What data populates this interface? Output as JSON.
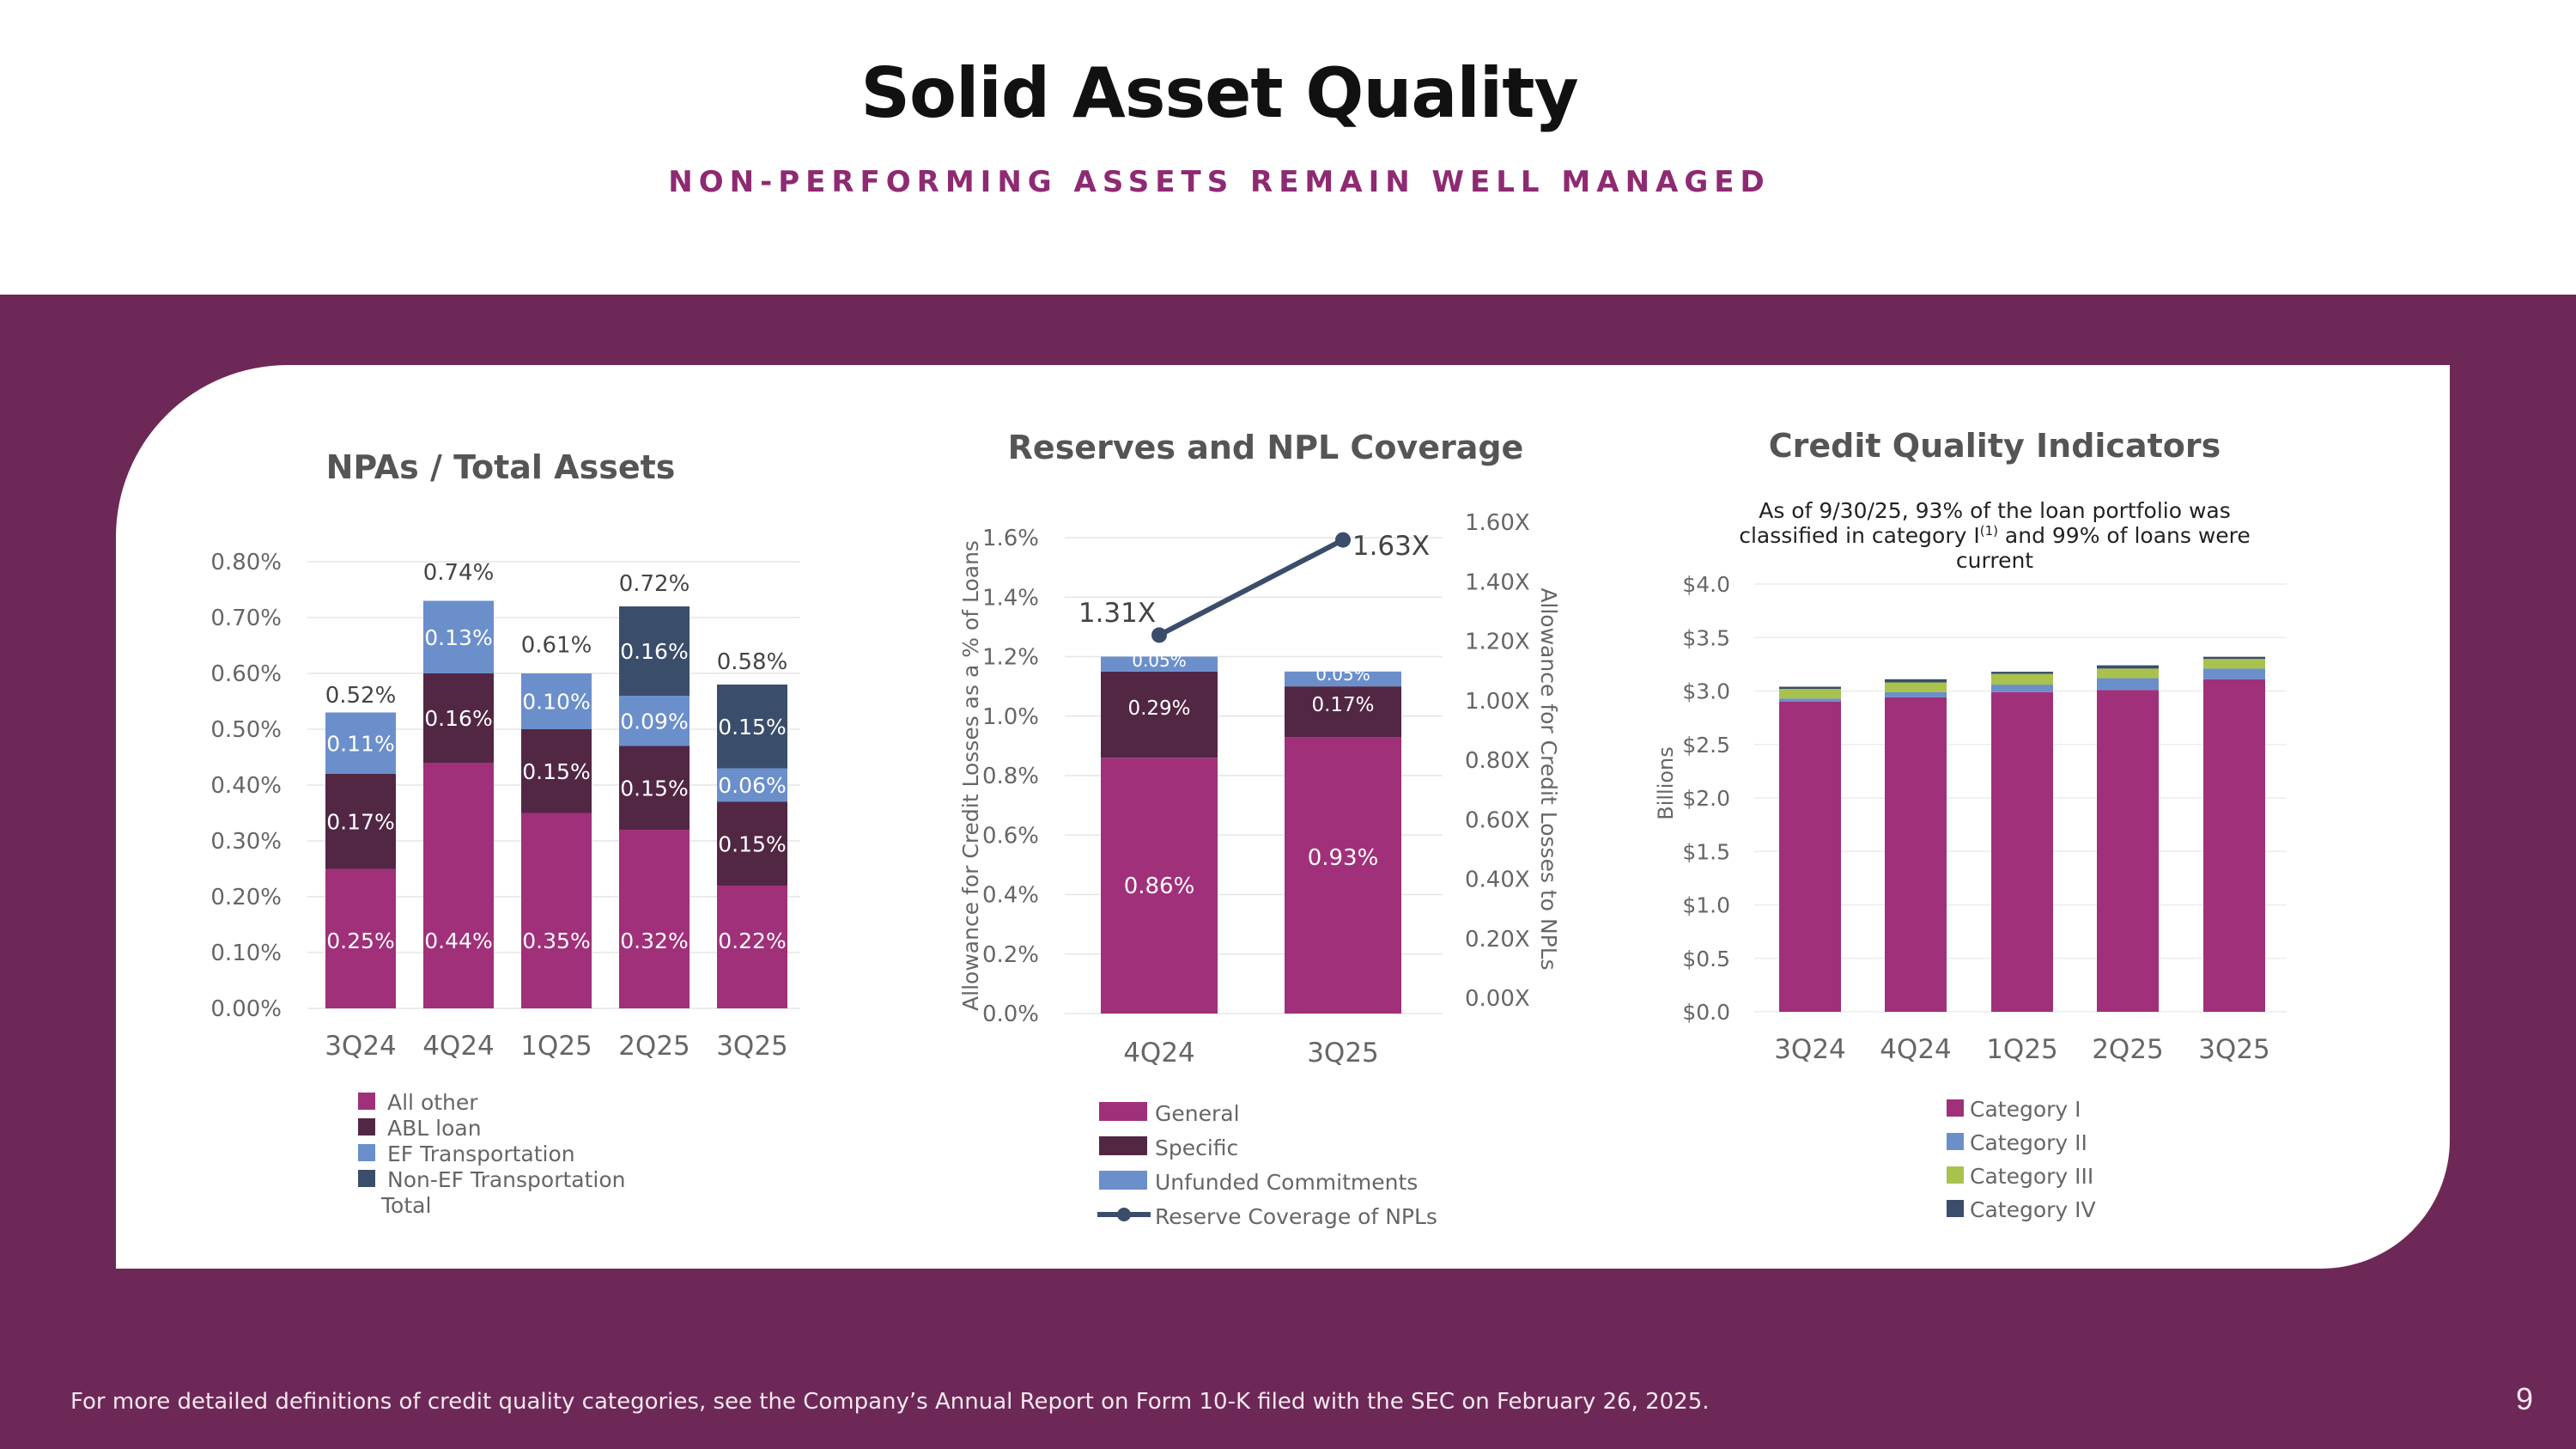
{
  "header": {
    "title": "Solid Asset Quality",
    "subtitle": "NON-PERFORMING ASSETS REMAIN WELL MANAGED"
  },
  "footer": {
    "footnote": "For more detailed definitions of credit quality categories, see the Company’s Annual Report on Form 10-K filed with the SEC on February 26, 2025.",
    "page_number": "9"
  },
  "colors": {
    "band": "#6e2857",
    "magenta": "#a03079",
    "plum": "#522744",
    "lightblue": "#6b8fcb",
    "navy": "#3a4d6b",
    "olive": "#a9c24c"
  },
  "chart_data": [
    {
      "type": "bar",
      "title": "NPAs / Total Assets",
      "stacked": true,
      "categories": [
        "3Q24",
        "4Q24",
        "1Q25",
        "2Q25",
        "3Q25"
      ],
      "ylim": [
        0,
        0.8
      ],
      "yticks": [
        "0.00%",
        "0.10%",
        "0.20%",
        "0.30%",
        "0.40%",
        "0.50%",
        "0.60%",
        "0.70%",
        "0.80%"
      ],
      "series": [
        {
          "name": "All other",
          "color": "#a03079",
          "values": [
            0.25,
            0.44,
            0.35,
            0.32,
            0.22
          ],
          "labels": [
            "0.25%",
            "0.44%",
            "0.35%",
            "0.32%",
            "0.22%"
          ]
        },
        {
          "name": "ABL loan",
          "color": "#522744",
          "values": [
            0.17,
            0.16,
            0.15,
            0.15,
            0.15
          ],
          "labels": [
            "0.17%",
            "0.16%",
            "0.15%",
            "0.15%",
            "0.15%"
          ]
        },
        {
          "name": "EF Transportation",
          "color": "#6b8fcb",
          "values": [
            0.11,
            0.13,
            0.1,
            0.09,
            0.06
          ],
          "labels": [
            "0.11%",
            "0.13%",
            "0.10%",
            "0.09%",
            "0.06%"
          ]
        },
        {
          "name": "Non-EF Transportation",
          "color": "#3a4d6b",
          "values": [
            0,
            0,
            0,
            0.16,
            0.15
          ],
          "labels": [
            "",
            "",
            "",
            "0.16%",
            "0.15%"
          ]
        }
      ],
      "totals": {
        "name": "Total",
        "values": [
          0.52,
          0.74,
          0.61,
          0.72,
          0.58
        ],
        "labels": [
          "0.52%",
          "0.74%",
          "0.61%",
          "0.72%",
          "0.58%"
        ]
      },
      "legend": "bottom"
    },
    {
      "type": "bar",
      "title": "Reserves and NPL Coverage",
      "stacked": true,
      "categories": [
        "4Q24",
        "3Q25"
      ],
      "ylabel": "Allowance for Credit Losses as a % of Loans",
      "y2label": "Allowance for Credit Losses to NPLs",
      "ylim": [
        0,
        1.6
      ],
      "yticks": [
        "0.0%",
        "0.2%",
        "0.4%",
        "0.6%",
        "0.8%",
        "1.0%",
        "1.2%",
        "1.4%",
        "1.6%"
      ],
      "y2lim": [
        0,
        1.6
      ],
      "y2ticks": [
        "0.00X",
        "0.20X",
        "0.40X",
        "0.60X",
        "0.80X",
        "1.00X",
        "1.20X",
        "1.40X",
        "1.60X"
      ],
      "series": [
        {
          "name": "General",
          "color": "#a03079",
          "values": [
            0.86,
            0.93
          ],
          "labels": [
            "0.86%",
            "0.93%"
          ]
        },
        {
          "name": "Specific",
          "color": "#522744",
          "values": [
            0.29,
            0.17
          ],
          "labels": [
            "0.29%",
            "0.17%"
          ]
        },
        {
          "name": "Unfunded Commitments",
          "color": "#6b8fcb",
          "values": [
            0.05,
            0.05
          ],
          "labels": [
            "0.05%",
            "0.05%"
          ]
        }
      ],
      "line": {
        "name": "Reserve Coverage of NPLs",
        "color": "#3a4d6b",
        "values": [
          1.31,
          1.63
        ],
        "labels": [
          "1.31X",
          "1.63X"
        ]
      },
      "legend": "bottom"
    },
    {
      "type": "bar",
      "title": "Credit Quality Indicators",
      "subtitle_lines": [
        "As of 9/30/25, 93% of the loan portfolio was",
        "classified in category I",
        " and 99% of loans were",
        "current"
      ],
      "subtitle_sup": "(1)",
      "stacked": true,
      "categories": [
        "3Q24",
        "4Q24",
        "1Q25",
        "2Q25",
        "3Q25"
      ],
      "ylabel": "Billions",
      "ylim": [
        0,
        4
      ],
      "yticks": [
        "$0.0",
        "$0.5",
        "$1.0",
        "$1.5",
        "$2.0",
        "$2.5",
        "$3.0",
        "$3.5",
        "$4.0"
      ],
      "series": [
        {
          "name": "Category I",
          "color": "#a03079",
          "values": [
            2.9,
            2.94,
            2.99,
            3.01,
            3.11
          ]
        },
        {
          "name": "Category II",
          "color": "#6b8fcb",
          "values": [
            0.03,
            0.05,
            0.07,
            0.11,
            0.1
          ]
        },
        {
          "name": "Category III",
          "color": "#a9c24c",
          "values": [
            0.09,
            0.09,
            0.1,
            0.09,
            0.09
          ]
        },
        {
          "name": "Category IV",
          "color": "#3a4d6b",
          "values": [
            0.02,
            0.03,
            0.02,
            0.03,
            0.02
          ]
        }
      ],
      "legend": "bottom"
    }
  ]
}
